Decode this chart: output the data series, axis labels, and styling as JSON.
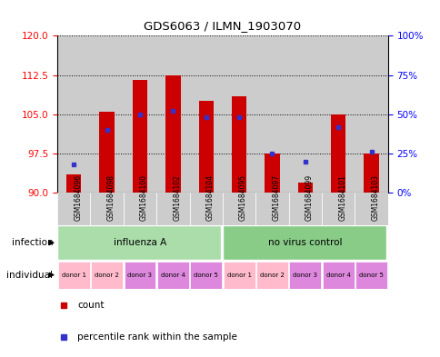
{
  "title": "GDS6063 / ILMN_1903070",
  "samples": [
    "GSM1684096",
    "GSM1684098",
    "GSM1684100",
    "GSM1684102",
    "GSM1684104",
    "GSM1684095",
    "GSM1684097",
    "GSM1684099",
    "GSM1684101",
    "GSM1684103"
  ],
  "counts": [
    93.5,
    105.5,
    111.5,
    112.5,
    107.5,
    108.5,
    97.5,
    92.0,
    105.0,
    97.5
  ],
  "percentiles": [
    18,
    40,
    50,
    52,
    48,
    48,
    25,
    20,
    42,
    26
  ],
  "ylim_left": [
    90,
    120
  ],
  "ylim_right": [
    0,
    100
  ],
  "yticks_left": [
    90,
    97.5,
    105,
    112.5,
    120
  ],
  "yticks_right": [
    0,
    25,
    50,
    75,
    100
  ],
  "bar_color": "#CC0000",
  "blue_color": "#3333CC",
  "bar_bottom": 90,
  "col_bg_color": "#CCCCCC",
  "infection_colors": [
    "#AADDAA",
    "#88CC88"
  ],
  "infection_labels": [
    "influenza A",
    "no virus control"
  ],
  "ind_colors_light": "#FFBBCC",
  "ind_colors_dark": "#DD88DD",
  "individual_labels": [
    "donor 1",
    "donor 2",
    "donor 3",
    "donor 4",
    "donor 5",
    "donor 1",
    "donor 2",
    "donor 3",
    "donor 4",
    "donor 5"
  ],
  "individual_pattern": [
    0,
    0,
    1,
    1,
    1,
    0,
    0,
    1,
    1,
    1
  ]
}
